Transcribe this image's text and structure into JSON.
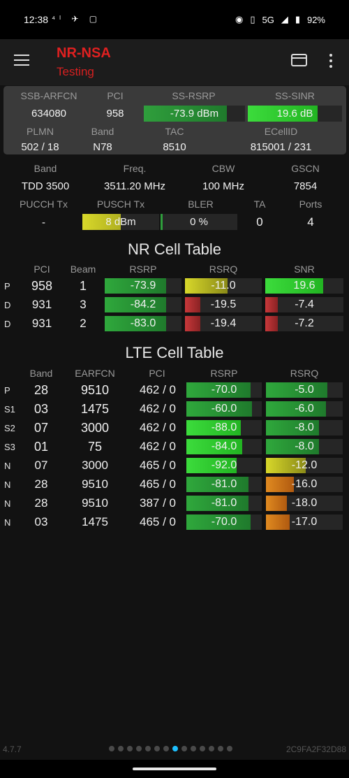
{
  "status": {
    "time": "12:38",
    "left_icons": "⁴ˡ ✈ ▢",
    "network": "5G",
    "battery": "92%"
  },
  "appbar": {
    "title": "NR-NSA",
    "subtitle": "Testing"
  },
  "summary": {
    "ssb_arfcn_label": "SSB-ARFCN",
    "ssb_arfcn": "634080",
    "pci_label": "PCI",
    "pci": "958",
    "ss_rsrp_label": "SS-RSRP",
    "ss_rsrp": "-73.9 dBm",
    "ss_rsrp_fill": 0.82,
    "ss_sinr_label": "SS-SINR",
    "ss_sinr": "19.6 dB",
    "ss_sinr_fill": 0.74,
    "plmn_label": "PLMN",
    "plmn": "502 / 18",
    "band_label": "Band",
    "band": "N78",
    "tac_label": "TAC",
    "tac": "8510",
    "ecellid_label": "ECellID",
    "ecellid": "815001 / 231"
  },
  "info": {
    "band_label": "Band",
    "band": "TDD 3500",
    "freq_label": "Freq.",
    "freq": "3511.20 MHz",
    "cbw_label": "CBW",
    "cbw": "100 MHz",
    "gscn_label": "GSCN",
    "gscn": "7854",
    "pucch_label": "PUCCH Tx",
    "pucch": "-",
    "pusch_label": "PUSCH Tx",
    "pusch": "8 dBm",
    "pusch_fill": 0.5,
    "bler_label": "BLER",
    "bler": "0 %",
    "bler_fill": 0.03,
    "ta_label": "TA",
    "ta": "0",
    "ports_label": "Ports",
    "ports": "4"
  },
  "nr_table": {
    "title": "NR Cell Table",
    "headers": {
      "pci": "PCI",
      "beam": "Beam",
      "rsrp": "RSRP",
      "rsrq": "RSRQ",
      "snr": "SNR"
    },
    "rows": [
      {
        "tag": "P",
        "pci": "958",
        "beam": "1",
        "rsrp": "-73.9",
        "rsrp_fill": 0.8,
        "rsrq": "-11.0",
        "rsrq_fill": 0.55,
        "snr": "19.6",
        "snr_fill": 0.74
      },
      {
        "tag": "D",
        "pci": "931",
        "beam": "3",
        "rsrp": "-84.2",
        "rsrp_fill": 0.8,
        "rsrq": "-19.5",
        "rsrq_fill": 0.2,
        "snr": "-7.4",
        "snr_fill": 0.16
      },
      {
        "tag": "D",
        "pci": "931",
        "beam": "2",
        "rsrp": "-83.0",
        "rsrp_fill": 0.8,
        "rsrq": "-19.4",
        "rsrq_fill": 0.2,
        "snr": "-7.2",
        "snr_fill": 0.16
      }
    ]
  },
  "lte_table": {
    "title": "LTE Cell Table",
    "headers": {
      "band": "Band",
      "earfcn": "EARFCN",
      "pci": "PCI",
      "rsrp": "RSRP",
      "rsrq": "RSRQ"
    },
    "rows": [
      {
        "tag": "P",
        "band": "28",
        "earfcn": "9510",
        "pci": "462 / 0",
        "rsrp": "-70.0",
        "rsrp_fill": 0.85,
        "rsrq": "-5.0",
        "rsrq_fill": 0.8
      },
      {
        "tag": "S1",
        "band": "03",
        "earfcn": "1475",
        "pci": "462 / 0",
        "rsrp": "-60.0",
        "rsrp_fill": 0.87,
        "rsrq": "-6.0",
        "rsrq_fill": 0.78
      },
      {
        "tag": "S2",
        "band": "07",
        "earfcn": "3000",
        "pci": "462 / 0",
        "rsrp": "-88.0",
        "rsrp_fill": 0.72,
        "rsrq": "-8.0",
        "rsrq_fill": 0.69
      },
      {
        "tag": "S3",
        "band": "01",
        "earfcn": "75",
        "pci": "462 / 0",
        "rsrp": "-84.0",
        "rsrp_fill": 0.74,
        "rsrq": "-8.0",
        "rsrq_fill": 0.69
      },
      {
        "tag": "N",
        "band": "07",
        "earfcn": "3000",
        "pci": "465 / 0",
        "rsrp": "-92.0",
        "rsrp_fill": 0.67,
        "rsrq": "-12.0",
        "rsrq_fill": 0.52
      },
      {
        "tag": "N",
        "band": "28",
        "earfcn": "9510",
        "pci": "465 / 0",
        "rsrp": "-81.0",
        "rsrp_fill": 0.82,
        "rsrq": "-16.0",
        "rsrq_fill": 0.36
      },
      {
        "tag": "N",
        "band": "28",
        "earfcn": "9510",
        "pci": "387 / 0",
        "rsrp": "-81.0",
        "rsrp_fill": 0.82,
        "rsrq": "-18.0",
        "rsrq_fill": 0.27
      },
      {
        "tag": "N",
        "band": "03",
        "earfcn": "1475",
        "pci": "465 / 0",
        "rsrp": "-70.0",
        "rsrp_fill": 0.85,
        "rsrq": "-17.0",
        "rsrq_fill": 0.31
      }
    ]
  },
  "footer": {
    "version": "4.7.7",
    "device_id": "2C9FA2F32D88",
    "page_count": 14,
    "active_page": 7
  }
}
